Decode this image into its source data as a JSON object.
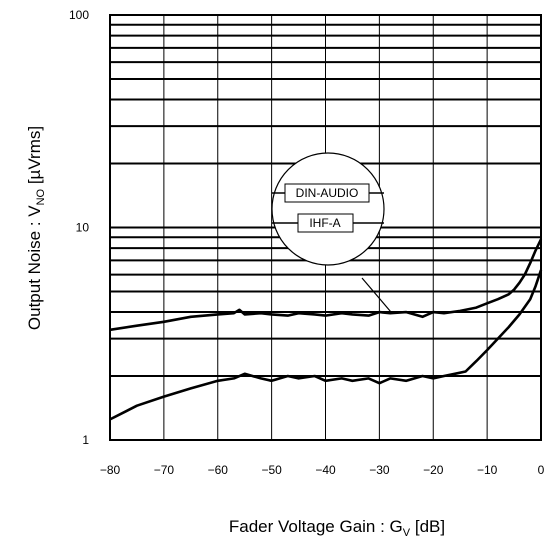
{
  "chart_data": {
    "type": "line",
    "title": "",
    "xlabel": {
      "main": "Fader Voltage Gain : G",
      "sub": "V",
      "unit": " [dB]"
    },
    "ylabel": {
      "main": "Output Noise : V",
      "sub": "NO",
      "unit": " [µVrms]"
    },
    "x_scale": "linear",
    "y_scale": "log",
    "xlim": [
      -80,
      0
    ],
    "ylim": [
      1,
      100
    ],
    "x_ticks": [
      -80,
      -70,
      -60,
      -50,
      -40,
      -30,
      -20,
      -10,
      0
    ],
    "x_tick_labels": [
      "−80",
      "−70",
      "−60",
      "−50",
      "−40",
      "−30",
      "−20",
      "−10",
      "0"
    ],
    "y_ticks": [
      1,
      10,
      100
    ],
    "y_tick_labels": [
      "1",
      "10",
      "100"
    ],
    "grid": true,
    "legend": {
      "placement": "inset-magnifier",
      "entries": [
        "DIN-AUDIO",
        "IHF-A"
      ]
    },
    "series": [
      {
        "name": "DIN-AUDIO",
        "x": [
          -80,
          -75,
          -70,
          -65,
          -60,
          -57,
          -56,
          -55,
          -52,
          -50,
          -47,
          -45,
          -42,
          -40,
          -37,
          -35,
          -32,
          -30,
          -28,
          -25,
          -22,
          -20,
          -18,
          -15,
          -12,
          -10,
          -8,
          -6,
          -5,
          -4,
          -3,
          -2,
          -1,
          0
        ],
        "y": [
          3.3,
          3.45,
          3.6,
          3.8,
          3.9,
          3.95,
          4.1,
          3.9,
          3.95,
          3.9,
          3.85,
          3.95,
          3.9,
          3.85,
          3.95,
          3.9,
          3.85,
          4.0,
          3.95,
          4.0,
          3.8,
          4.0,
          3.95,
          4.05,
          4.2,
          4.4,
          4.6,
          4.85,
          5.1,
          5.5,
          6.0,
          6.8,
          7.8,
          8.8
        ]
      },
      {
        "name": "IHF-A",
        "x": [
          -80,
          -75,
          -70,
          -65,
          -60,
          -57,
          -55,
          -52,
          -50,
          -47,
          -45,
          -42,
          -40,
          -37,
          -35,
          -32,
          -30,
          -28,
          -25,
          -22,
          -20,
          -18,
          -16,
          -14,
          -12,
          -10,
          -8,
          -6,
          -4,
          -2,
          -1,
          0
        ],
        "y": [
          1.25,
          1.45,
          1.6,
          1.75,
          1.9,
          1.95,
          2.05,
          1.95,
          1.9,
          2.0,
          1.95,
          2.0,
          1.9,
          1.95,
          1.9,
          1.95,
          1.85,
          1.95,
          1.9,
          2.0,
          1.95,
          2.0,
          2.05,
          2.1,
          2.35,
          2.65,
          3.0,
          3.4,
          3.9,
          4.6,
          5.3,
          6.3
        ]
      }
    ]
  }
}
